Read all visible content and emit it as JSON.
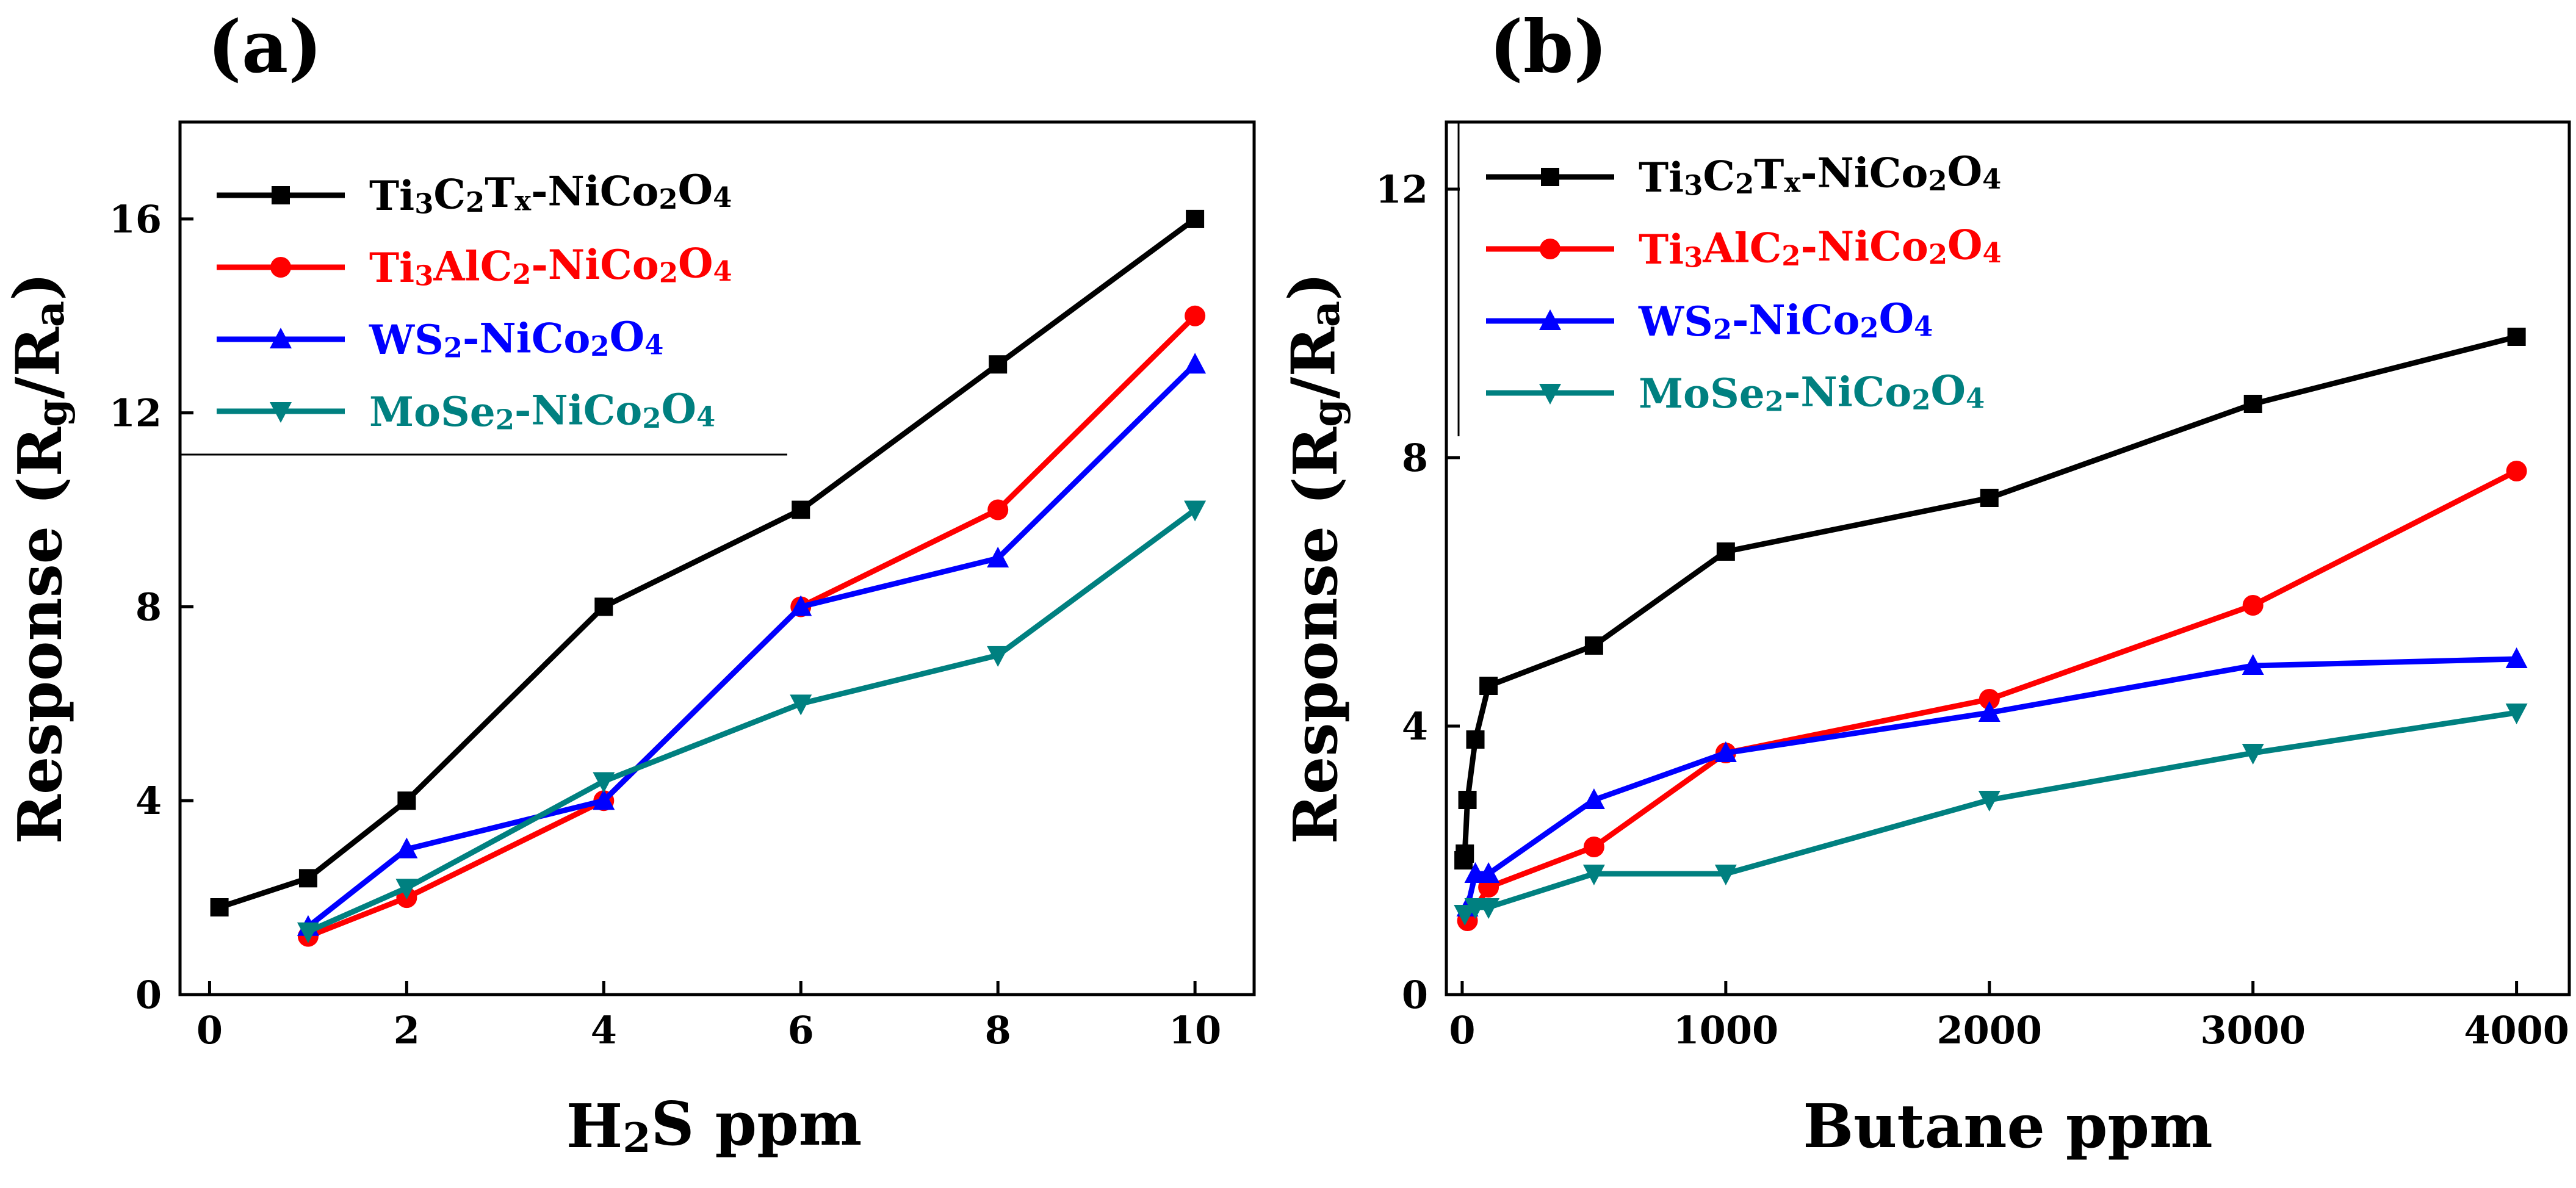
{
  "chart_data": [
    {
      "type": "line",
      "panel_label": "(a)",
      "xlabel": {
        "main": "H",
        "sub": "2",
        "rest": "S ppm"
      },
      "ylabel": {
        "main": "Response (R",
        "sub1": "g",
        "mid": "/R",
        "sub2": "a",
        "end": ")"
      },
      "xlim": [
        -0.3,
        10.6
      ],
      "ylim": [
        0,
        18
      ],
      "xticks": [
        0,
        2,
        4,
        6,
        8,
        10
      ],
      "yticks": [
        0,
        4,
        8,
        12,
        16
      ],
      "xtick_labels": [
        "0",
        "2",
        "4",
        "6",
        "8",
        "10"
      ],
      "ytick_labels": [
        "0",
        "4",
        "8",
        "12",
        "16"
      ],
      "legend_position": "top-left",
      "series": [
        {
          "name": "Ti3C2Tx-NiCo2O4",
          "label_parts": [
            [
              "Ti",
              ""
            ],
            [
              "3",
              "s"
            ],
            [
              "C",
              ""
            ],
            [
              "2",
              "s"
            ],
            [
              "T",
              ""
            ],
            [
              "x",
              "s"
            ],
            [
              "-NiCo",
              ""
            ],
            [
              "2",
              "s"
            ],
            [
              "O",
              ""
            ],
            [
              "4",
              "s"
            ]
          ],
          "color": "#000000",
          "marker": "square",
          "x": [
            0.1,
            1,
            2,
            4,
            6,
            8,
            10
          ],
          "y": [
            1.8,
            2.4,
            4.0,
            8.0,
            10.0,
            13.0,
            16.0
          ]
        },
        {
          "name": "Ti3AlC2-NiCo2O4",
          "label_parts": [
            [
              "Ti",
              ""
            ],
            [
              "3",
              "s"
            ],
            [
              "AlC",
              ""
            ],
            [
              "2",
              "s"
            ],
            [
              "-NiCo",
              ""
            ],
            [
              "2",
              "s"
            ],
            [
              "O",
              ""
            ],
            [
              "4",
              "s"
            ]
          ],
          "color": "#ff0000",
          "marker": "circle",
          "x": [
            1,
            2,
            4,
            6,
            8,
            10
          ],
          "y": [
            1.2,
            2.0,
            4.0,
            8.0,
            10.0,
            14.0
          ]
        },
        {
          "name": "WS2-NiCo2O4",
          "label_parts": [
            [
              "WS",
              ""
            ],
            [
              "2",
              "s"
            ],
            [
              "-NiCo",
              ""
            ],
            [
              "2",
              "s"
            ],
            [
              "O",
              ""
            ],
            [
              "4",
              "s"
            ]
          ],
          "color": "#0000ff",
          "marker": "triangle-up",
          "x": [
            1,
            2,
            4,
            6,
            8,
            10
          ],
          "y": [
            1.4,
            3.0,
            4.0,
            8.0,
            9.0,
            13.0
          ]
        },
        {
          "name": "MoSe2-NiCo2O4",
          "label_parts": [
            [
              "MoSe",
              ""
            ],
            [
              "2",
              "s"
            ],
            [
              "-NiCo",
              ""
            ],
            [
              "2",
              "s"
            ],
            [
              "O",
              ""
            ],
            [
              "4",
              "s"
            ]
          ],
          "color": "#008080",
          "marker": "triangle-down",
          "x": [
            1,
            2,
            4,
            6,
            8,
            10
          ],
          "y": [
            1.3,
            2.2,
            4.4,
            6.0,
            7.0,
            10.0
          ]
        }
      ]
    },
    {
      "type": "line",
      "panel_label": "(b)",
      "xlabel": {
        "main": "Butane ppm",
        "sub": "",
        "rest": ""
      },
      "ylabel": {
        "main": "Response (R",
        "sub1": "g",
        "mid": "/R",
        "sub2": "a",
        "end": ")"
      },
      "xlim": [
        -60,
        4200
      ],
      "ylim": [
        0,
        13
      ],
      "xticks": [
        0,
        1000,
        2000,
        3000,
        4000
      ],
      "yticks": [
        0,
        4,
        8,
        12
      ],
      "xtick_labels": [
        "0",
        "1000",
        "2000",
        "3000",
        "4000"
      ],
      "ytick_labels": [
        "0",
        "4",
        "8",
        "12"
      ],
      "legend_position": "top-left",
      "series": [
        {
          "name": "Ti3C2Tx-NiCo2O4",
          "label_parts": [
            [
              "Ti",
              ""
            ],
            [
              "3",
              "s"
            ],
            [
              "C",
              ""
            ],
            [
              "2",
              "s"
            ],
            [
              "T",
              ""
            ],
            [
              "x",
              "s"
            ],
            [
              "-NiCo",
              ""
            ],
            [
              "2",
              "s"
            ],
            [
              "O",
              ""
            ],
            [
              "4",
              "s"
            ]
          ],
          "color": "#000000",
          "marker": "square",
          "x": [
            5,
            10,
            20,
            50,
            100,
            500,
            1000,
            2000,
            3000,
            4000
          ],
          "y": [
            2.0,
            2.1,
            2.9,
            3.8,
            4.6,
            5.2,
            6.6,
            7.4,
            8.8,
            9.8
          ]
        },
        {
          "name": "Ti3AlC2-NiCo2O4",
          "label_parts": [
            [
              "Ti",
              ""
            ],
            [
              "3",
              "s"
            ],
            [
              "AlC",
              ""
            ],
            [
              "2",
              "s"
            ],
            [
              "-NiCo",
              ""
            ],
            [
              "2",
              "s"
            ],
            [
              "O",
              ""
            ],
            [
              "4",
              "s"
            ]
          ],
          "color": "#ff0000",
          "marker": "circle",
          "x": [
            20,
            100,
            500,
            1000,
            2000,
            3000,
            4000
          ],
          "y": [
            1.1,
            1.6,
            2.2,
            3.6,
            4.4,
            5.8,
            7.8
          ]
        },
        {
          "name": "WS2-NiCo2O4",
          "label_parts": [
            [
              "WS",
              ""
            ],
            [
              "2",
              "s"
            ],
            [
              "-NiCo",
              ""
            ],
            [
              "2",
              "s"
            ],
            [
              "O",
              ""
            ],
            [
              "4",
              "s"
            ]
          ],
          "color": "#0000ff",
          "marker": "triangle-up",
          "x": [
            20,
            50,
            100,
            500,
            1000,
            2000,
            3000,
            4000
          ],
          "y": [
            1.3,
            1.8,
            1.8,
            2.9,
            3.6,
            4.2,
            4.9,
            5.0
          ]
        },
        {
          "name": "MoSe2-NiCo2O4",
          "label_parts": [
            [
              "MoSe",
              ""
            ],
            [
              "2",
              "s"
            ],
            [
              "-NiCo",
              ""
            ],
            [
              "2",
              "s"
            ],
            [
              "O",
              ""
            ],
            [
              "4",
              "s"
            ]
          ],
          "color": "#008080",
          "marker": "triangle-down",
          "x": [
            10,
            50,
            100,
            500,
            1000,
            2000,
            3000,
            4000
          ],
          "y": [
            1.2,
            1.3,
            1.3,
            1.8,
            1.8,
            2.9,
            3.6,
            4.2
          ]
        }
      ]
    }
  ]
}
